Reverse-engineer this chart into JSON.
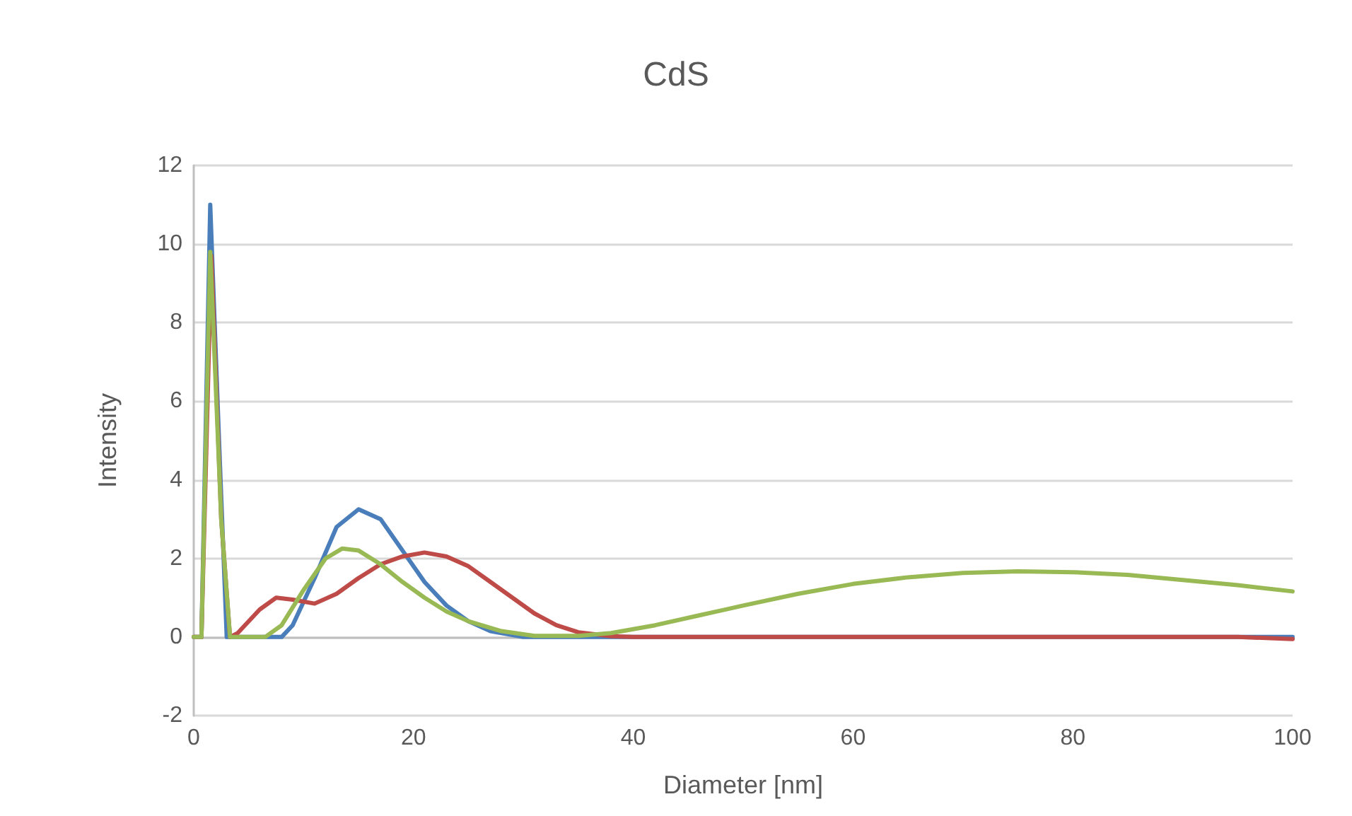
{
  "chart_data": {
    "type": "line",
    "title": "CdS",
    "xlabel": "Diameter [nm]",
    "ylabel": "Intensity",
    "xlim": [
      0,
      100
    ],
    "xticks": [
      0,
      20,
      40,
      60,
      80,
      100
    ],
    "ylim": [
      -2,
      12
    ],
    "yticks": [
      -2,
      0,
      2,
      4,
      6,
      8,
      10,
      12
    ],
    "grid": "y",
    "marker": "none",
    "line_style": "solid",
    "series": [
      {
        "color": "#4a7ebb",
        "x": [
          0,
          0.7,
          1.5,
          2.3,
          3,
          4,
          8,
          9,
          11,
          13,
          15,
          17,
          19,
          21,
          23,
          25,
          27,
          30,
          40,
          100
        ],
        "values": [
          0,
          0,
          11,
          5,
          0,
          0,
          0,
          0.3,
          1.5,
          2.8,
          3.25,
          3.0,
          2.2,
          1.4,
          0.8,
          0.4,
          0.15,
          0,
          0,
          0
        ]
      },
      {
        "color": "#be4b48",
        "x": [
          0,
          0.7,
          1.6,
          2.5,
          3.3,
          4,
          6,
          7.5,
          9,
          11,
          13,
          15,
          17,
          19,
          21,
          23,
          25,
          27,
          29,
          31,
          33,
          35,
          38,
          40,
          95,
          100
        ],
        "values": [
          0,
          0,
          9.7,
          3,
          0,
          0.1,
          0.7,
          1.0,
          0.95,
          0.85,
          1.1,
          1.5,
          1.85,
          2.05,
          2.15,
          2.05,
          1.8,
          1.4,
          1.0,
          0.6,
          0.3,
          0.12,
          0.02,
          0,
          0,
          -0.05
        ]
      },
      {
        "color": "#98b954",
        "x": [
          0,
          0.7,
          1.5,
          2.5,
          3.3,
          5,
          6.5,
          8,
          10,
          12,
          13.5,
          15,
          17,
          19,
          21,
          23,
          25,
          28,
          31,
          35,
          38,
          42,
          46,
          50,
          55,
          60,
          65,
          70,
          75,
          80,
          85,
          90,
          95,
          100
        ],
        "values": [
          0,
          0,
          9.8,
          3,
          0,
          0,
          0,
          0.3,
          1.2,
          2.0,
          2.25,
          2.2,
          1.85,
          1.4,
          1.0,
          0.65,
          0.4,
          0.15,
          0.03,
          0.03,
          0.1,
          0.3,
          0.55,
          0.8,
          1.1,
          1.35,
          1.52,
          1.63,
          1.67,
          1.65,
          1.58,
          1.45,
          1.32,
          1.16
        ]
      }
    ]
  }
}
